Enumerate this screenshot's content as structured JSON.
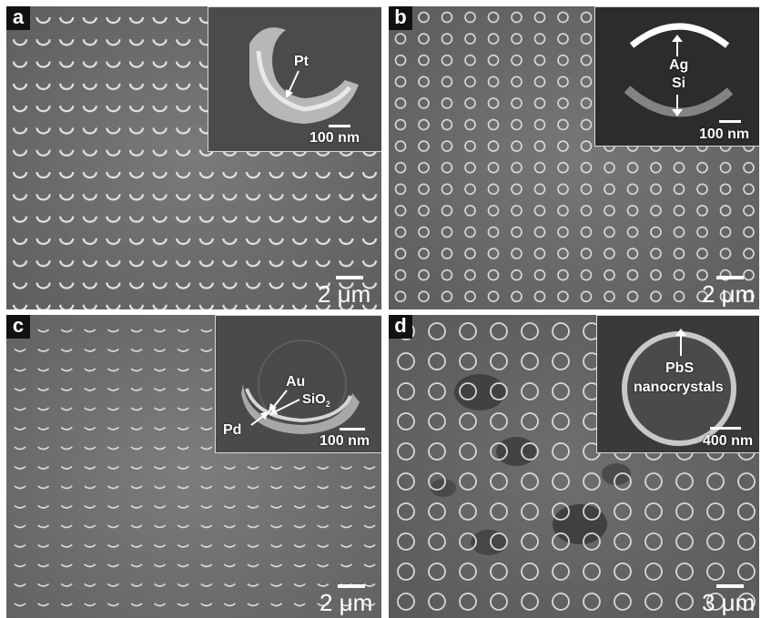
{
  "panels": [
    {
      "letter": "a",
      "scale_main": "2 μm",
      "inset_scale": "100 nm",
      "inset_labels": [
        "Pt"
      ]
    },
    {
      "letter": "b",
      "scale_main": "2 μm",
      "inset_scale": "100 nm",
      "inset_labels": [
        "Ag",
        "Si"
      ]
    },
    {
      "letter": "c",
      "scale_main": "2 μm",
      "inset_scale": "100 nm",
      "inset_labels": [
        "Au",
        "SiO",
        "2",
        "Pd"
      ]
    },
    {
      "letter": "d",
      "scale_main": "3 μm",
      "inset_scale": "400 nm",
      "inset_labels": [
        "PbS",
        "nanocrystals"
      ]
    }
  ],
  "colors": {
    "background": "#6e6e6e",
    "ring": "#d9d9d9",
    "label": "#ffffff"
  }
}
